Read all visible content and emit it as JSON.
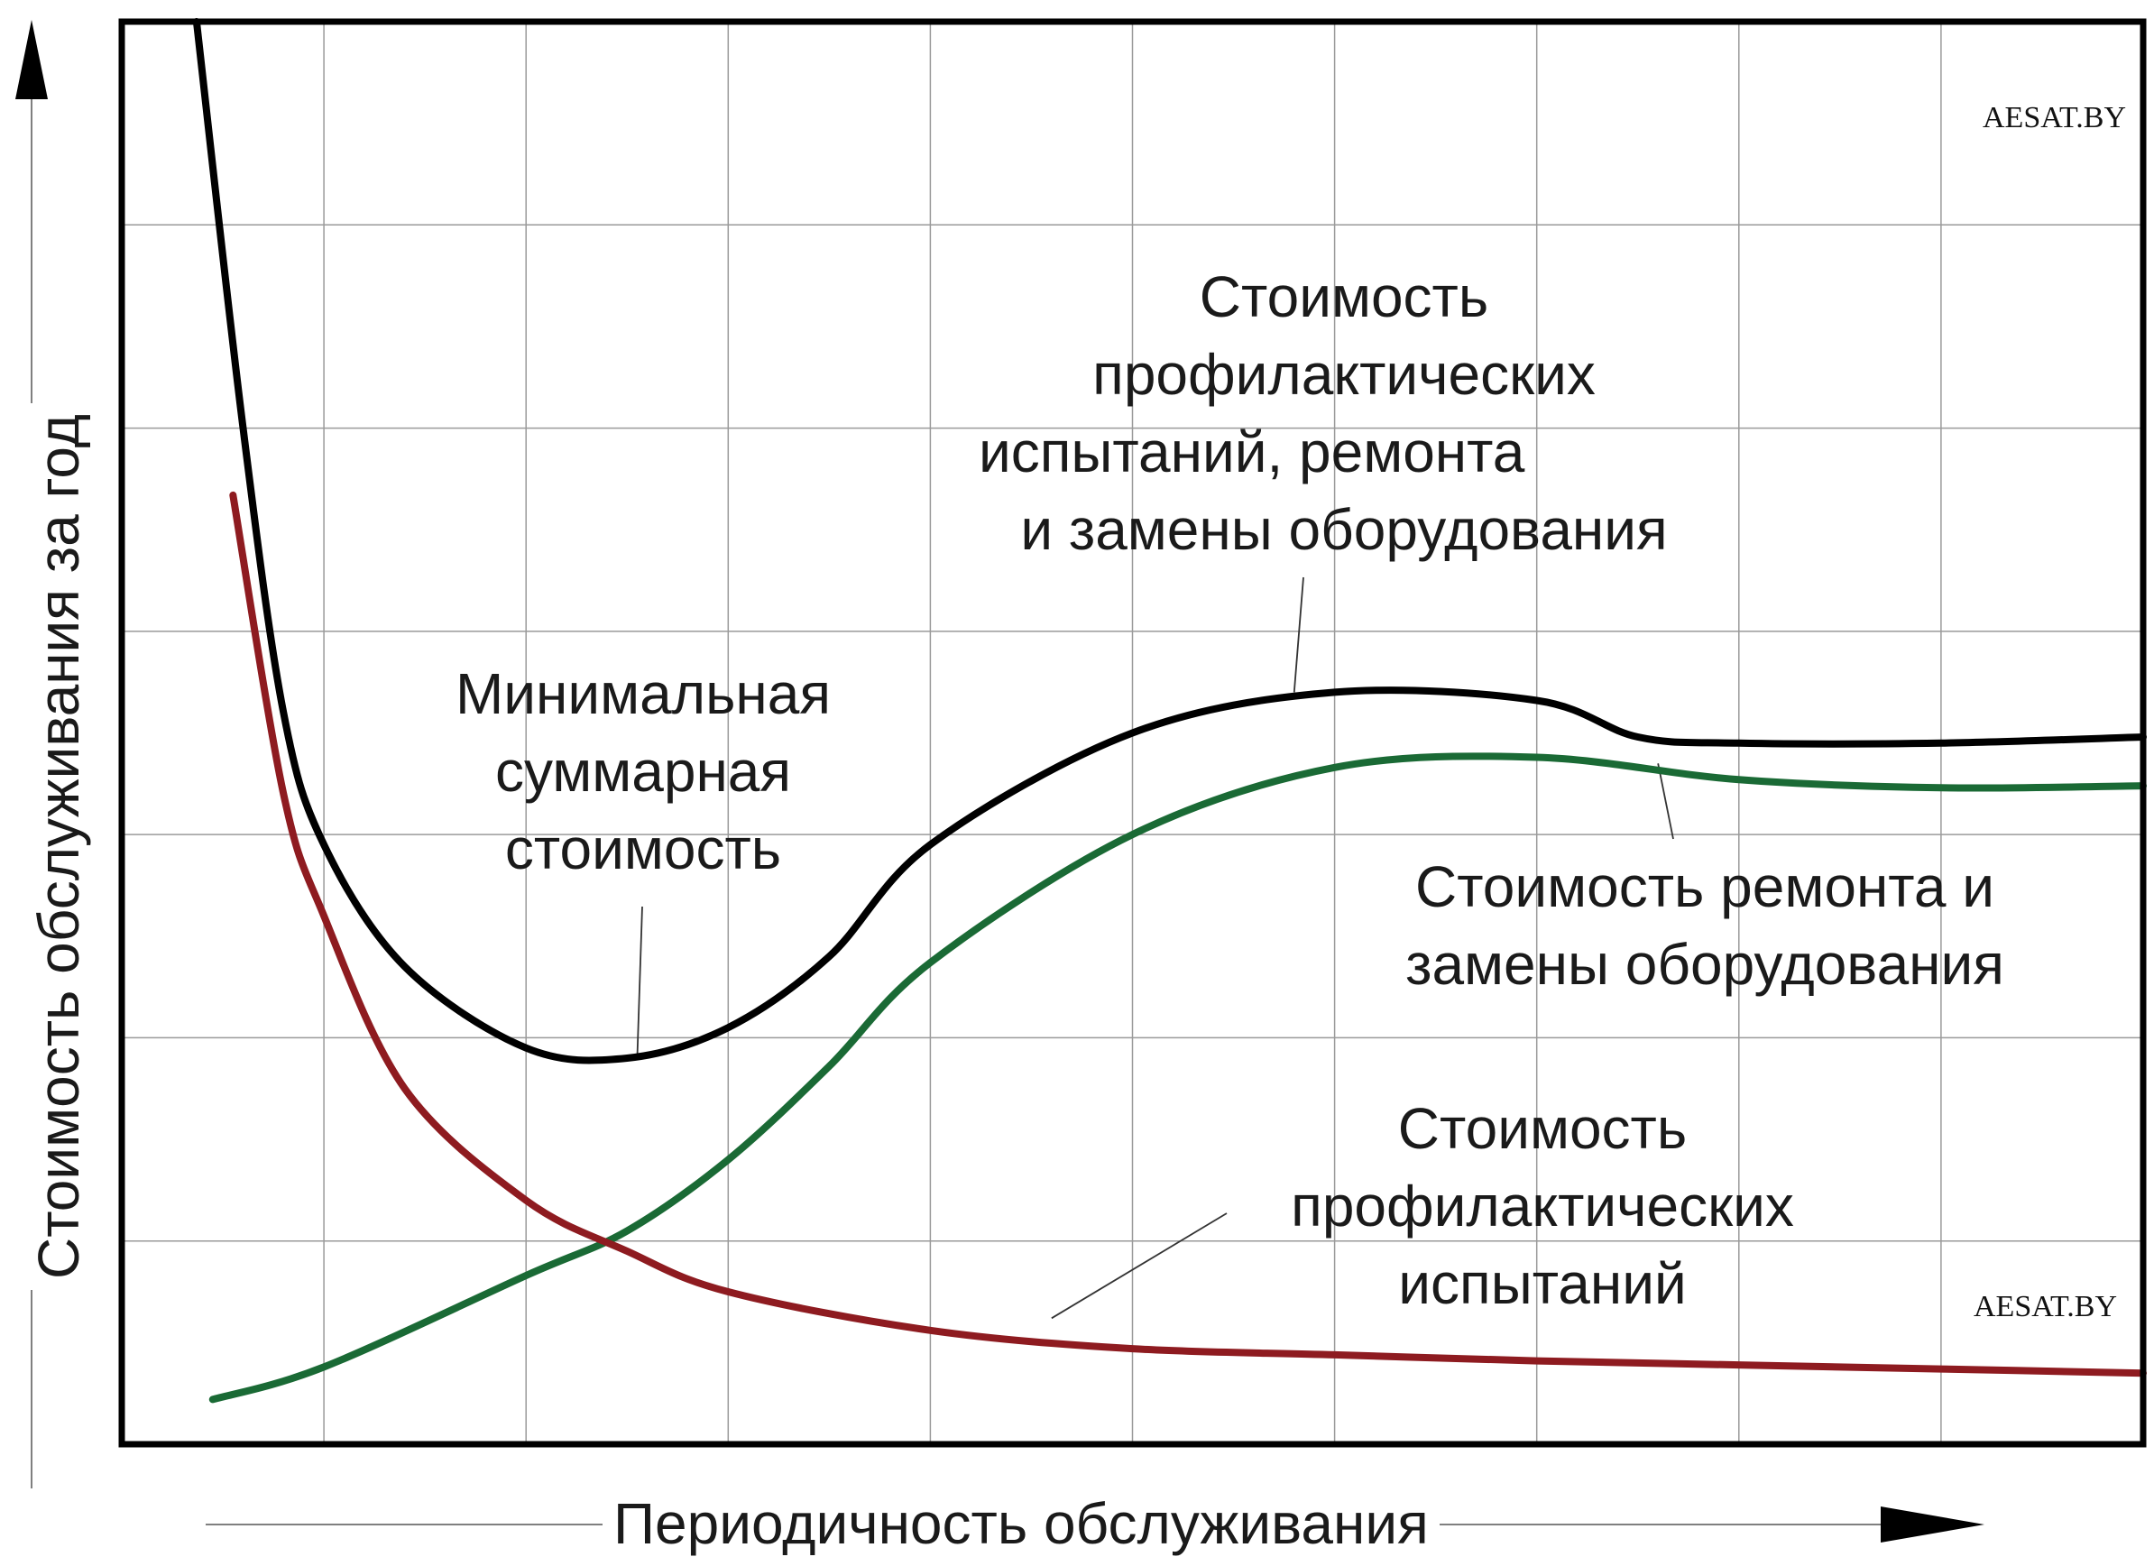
{
  "chart_data": {
    "type": "line",
    "title": "",
    "xlabel": "Периодичность обслуживания",
    "ylabel": "Стоимость обслуживания за год",
    "grid": true,
    "x_ticks_labeled": false,
    "y_ticks_labeled": false,
    "xlim": [
      0,
      10
    ],
    "ylim": [
      0,
      7
    ],
    "series": [
      {
        "name": "Стоимость профилактических испытаний, ремонта и замены оборудования",
        "color": "#000000",
        "points": [
          [
            0.37,
            7.0
          ],
          [
            0.6,
            5.0
          ],
          [
            0.8,
            3.6
          ],
          [
            1.0,
            2.95
          ],
          [
            1.4,
            2.35
          ],
          [
            2.0,
            1.95
          ],
          [
            2.5,
            1.9
          ],
          [
            3.0,
            2.05
          ],
          [
            3.5,
            2.4
          ],
          [
            4.0,
            2.95
          ],
          [
            5.0,
            3.5
          ],
          [
            6.0,
            3.7
          ],
          [
            7.0,
            3.66
          ],
          [
            7.5,
            3.48
          ],
          [
            8.0,
            3.45
          ],
          [
            9.0,
            3.45
          ],
          [
            10.0,
            3.48
          ]
        ]
      },
      {
        "name": "Стоимость ремонта и замены оборудования",
        "color": "#1a6a35",
        "points": [
          [
            0.45,
            0.22
          ],
          [
            1.0,
            0.38
          ],
          [
            2.0,
            0.83
          ],
          [
            2.5,
            1.05
          ],
          [
            3.0,
            1.4
          ],
          [
            3.5,
            1.86
          ],
          [
            4.0,
            2.37
          ],
          [
            5.0,
            3.0
          ],
          [
            6.0,
            3.33
          ],
          [
            7.0,
            3.38
          ],
          [
            8.0,
            3.27
          ],
          [
            9.0,
            3.23
          ],
          [
            10.0,
            3.24
          ]
        ]
      },
      {
        "name": "Стоимость профилактических испытаний",
        "color": "#8e1b20",
        "points": [
          [
            0.55,
            4.67
          ],
          [
            0.8,
            3.2
          ],
          [
            1.0,
            2.6
          ],
          [
            1.4,
            1.75
          ],
          [
            2.0,
            1.2
          ],
          [
            2.5,
            0.95
          ],
          [
            3.0,
            0.75
          ],
          [
            4.0,
            0.56
          ],
          [
            5.0,
            0.47
          ],
          [
            6.0,
            0.44
          ],
          [
            7.0,
            0.41
          ],
          [
            8.0,
            0.39
          ],
          [
            9.0,
            0.37
          ],
          [
            10.0,
            0.35
          ]
        ]
      }
    ],
    "annotations": [
      {
        "id": "total",
        "lines": [
          "Стоимость",
          "профилактических",
          "испытаний, ремонта",
          "и замены оборудования"
        ],
        "target": [
          5.8,
          3.7
        ]
      },
      {
        "id": "minimum",
        "lines": [
          "Минимальная",
          "суммарная",
          "стоимость"
        ],
        "target": [
          2.55,
          1.9
        ]
      },
      {
        "id": "repair",
        "lines": [
          "Стоимость ремонта и",
          "замены оборудования"
        ],
        "target": [
          7.6,
          3.35
        ]
      },
      {
        "id": "preventive",
        "lines": [
          "Стоимость",
          "профилактических",
          "испытаний"
        ],
        "target": [
          4.6,
          0.62
        ]
      }
    ],
    "watermarks": [
      "AESAT.BY",
      "AESAT.BY"
    ]
  }
}
